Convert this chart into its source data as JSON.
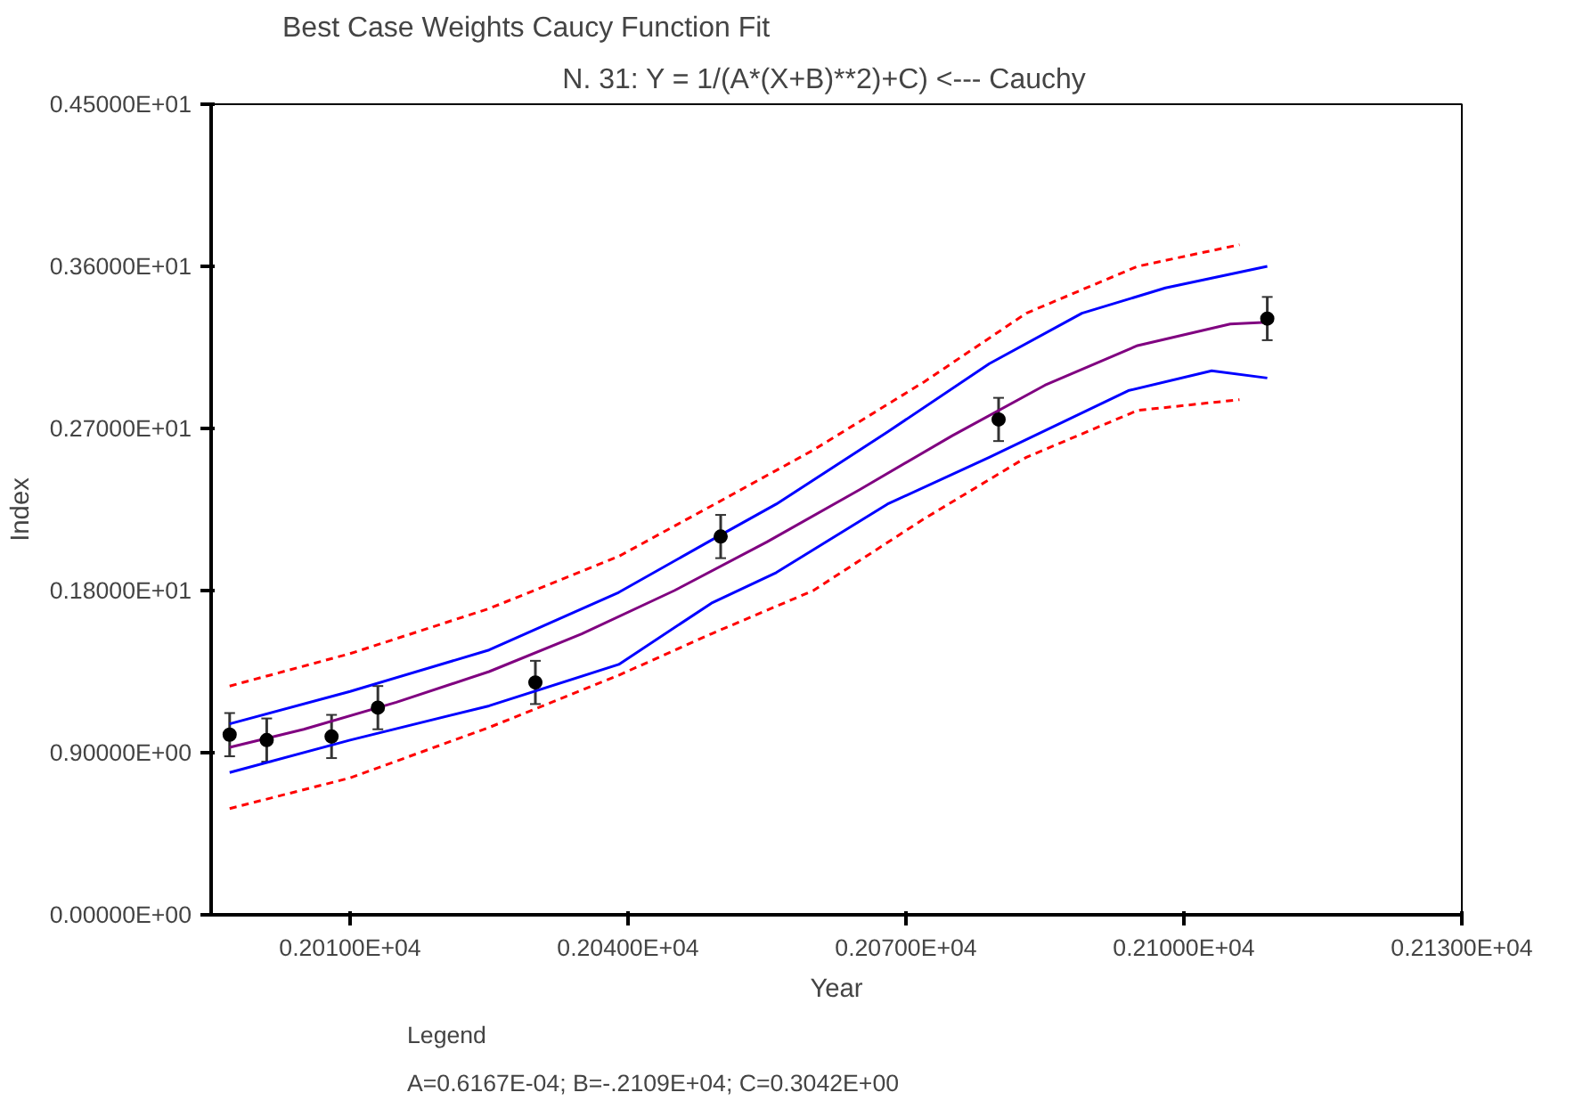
{
  "chart_data": {
    "type": "line",
    "title": "Best Case Weights Caucy Function Fit",
    "subtitle": "N.  31:   Y = 1/(A*(X+B)**2)+C) <--- Cauchy",
    "xlabel": "Year",
    "ylabel": "Index",
    "annotations": [
      "Legend",
      "A=0.6167E-04;  B=-.2109E+04;  C=0.3042E+00"
    ],
    "xlim": [
      1995,
      2130
    ],
    "ylim": [
      0,
      4.5
    ],
    "xticks": [
      {
        "value": 2010,
        "label": "0.20100E+04"
      },
      {
        "value": 2040,
        "label": "0.20400E+04"
      },
      {
        "value": 2070,
        "label": "0.20700E+04"
      },
      {
        "value": 2100,
        "label": "0.21000E+04"
      },
      {
        "value": 2130,
        "label": "0.21300E+04"
      }
    ],
    "yticks": [
      {
        "value": 0,
        "label": "0.00000E+00"
      },
      {
        "value": 0.9,
        "label": "0.90000E+00"
      },
      {
        "value": 1.8,
        "label": "0.18000E+01"
      },
      {
        "value": 2.7,
        "label": "0.27000E+01"
      },
      {
        "value": 3.6,
        "label": "0.36000E+01"
      },
      {
        "value": 4.5,
        "label": "0.45000E+01"
      }
    ],
    "grid": false,
    "series": [
      {
        "color": "#ff0000",
        "line_style": "dashed",
        "x": [
          1997,
          2010,
          2025,
          2039,
          2049,
          2060,
          2072,
          2083,
          2095,
          2106
        ],
        "values": [
          1.27,
          1.45,
          1.7,
          1.99,
          2.27,
          2.58,
          2.96,
          3.34,
          3.6,
          3.72
        ]
      },
      {
        "color": "#ff0000",
        "line_style": "dashed",
        "x": [
          1997,
          2010,
          2025,
          2039,
          2049,
          2060,
          2072,
          2083,
          2095,
          2106
        ],
        "values": [
          0.59,
          0.76,
          1.04,
          1.33,
          1.56,
          1.8,
          2.2,
          2.54,
          2.8,
          2.86
        ]
      },
      {
        "color": "#0000ff",
        "line_style": "solid",
        "x": [
          1997,
          2010,
          2025,
          2039,
          2049,
          2056,
          2068,
          2079,
          2089,
          2098,
          2109
        ],
        "values": [
          1.06,
          1.24,
          1.47,
          1.79,
          2.08,
          2.28,
          2.68,
          3.06,
          3.34,
          3.48,
          3.6
        ]
      },
      {
        "color": "#0000ff",
        "line_style": "solid",
        "x": [
          1997,
          2010,
          2025,
          2039,
          2049,
          2056,
          2068,
          2079,
          2094,
          2103,
          2109
        ],
        "values": [
          0.79,
          0.97,
          1.16,
          1.39,
          1.73,
          1.9,
          2.28,
          2.54,
          2.91,
          3.02,
          2.98
        ]
      },
      {
        "color": "#800080",
        "line_style": "solid",
        "x": [
          1997,
          2005,
          2015,
          2025,
          2035,
          2045,
          2055,
          2065,
          2075,
          2085,
          2095,
          2105,
          2109
        ],
        "values": [
          0.93,
          1.03,
          1.18,
          1.35,
          1.56,
          1.8,
          2.07,
          2.36,
          2.66,
          2.94,
          3.16,
          3.28,
          3.29
        ]
      },
      {
        "type": "scatter",
        "color": "#000000",
        "marker": "circle",
        "x": [
          1997,
          2001,
          2008,
          2013,
          2030,
          2050,
          2080,
          2109
        ],
        "values": [
          1.0,
          0.97,
          0.99,
          1.15,
          1.29,
          2.1,
          2.75,
          3.31
        ],
        "errors": [
          0.12,
          0.12,
          0.12,
          0.12,
          0.12,
          0.12,
          0.12,
          0.12
        ]
      }
    ]
  }
}
